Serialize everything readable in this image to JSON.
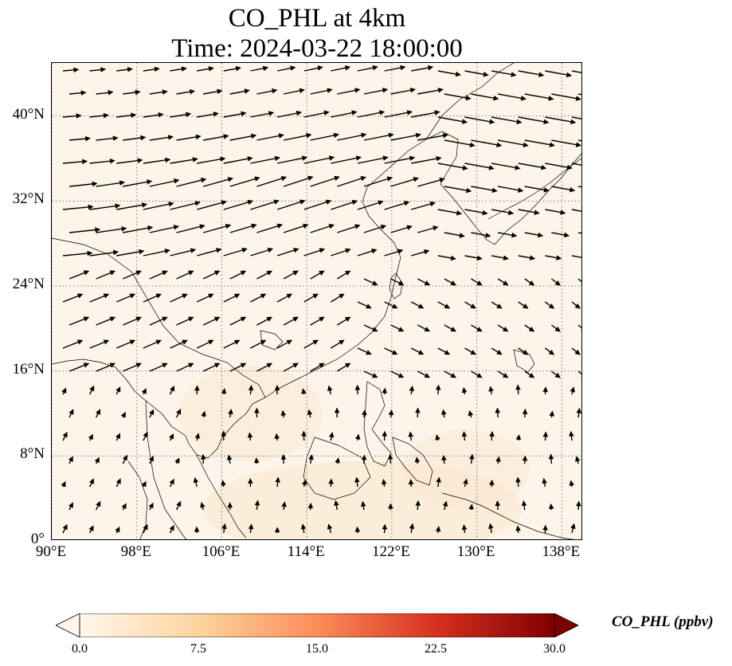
{
  "figure": {
    "title_line1": "CO_PHL at 4km",
    "title_line2": "Time: 2024-03-22 18:00:00"
  },
  "map": {
    "projection": "PlateCarree",
    "lon_range": [
      90,
      140
    ],
    "lat_range": [
      0,
      45
    ],
    "gridlines": true,
    "gridline_style": "dotted",
    "background_field_color": "#fdf5e9",
    "coastline_color": "#000000",
    "lat_ticks": [
      {
        "value": 0,
        "label": "0°"
      },
      {
        "value": 8,
        "label": "8°N"
      },
      {
        "value": 16,
        "label": "16°N"
      },
      {
        "value": 24,
        "label": "24°N"
      },
      {
        "value": 32,
        "label": "32°N"
      },
      {
        "value": 40,
        "label": "40°N"
      }
    ],
    "lon_ticks": [
      {
        "value": 90,
        "label": "90°E"
      },
      {
        "value": 98,
        "label": "98°E"
      },
      {
        "value": 106,
        "label": "106°E"
      },
      {
        "value": 114,
        "label": "114°E"
      },
      {
        "value": 122,
        "label": "122°E"
      },
      {
        "value": 130,
        "label": "130°E"
      },
      {
        "value": 138,
        "label": "138°E"
      }
    ]
  },
  "colorbar": {
    "colormap": "OrRd",
    "min": 0.0,
    "max": 30.0,
    "extend": "both",
    "tick_labels": [
      "0.0",
      "7.5",
      "15.0",
      "22.5",
      "30.0"
    ],
    "tick_values": [
      0,
      7.5,
      15,
      22.5,
      30
    ],
    "unit_label": "CO_PHL (ppbv)",
    "color_stops": [
      "#fff7ec",
      "#fdd49e",
      "#fc8d59",
      "#d7301f",
      "#7f0000"
    ]
  }
}
